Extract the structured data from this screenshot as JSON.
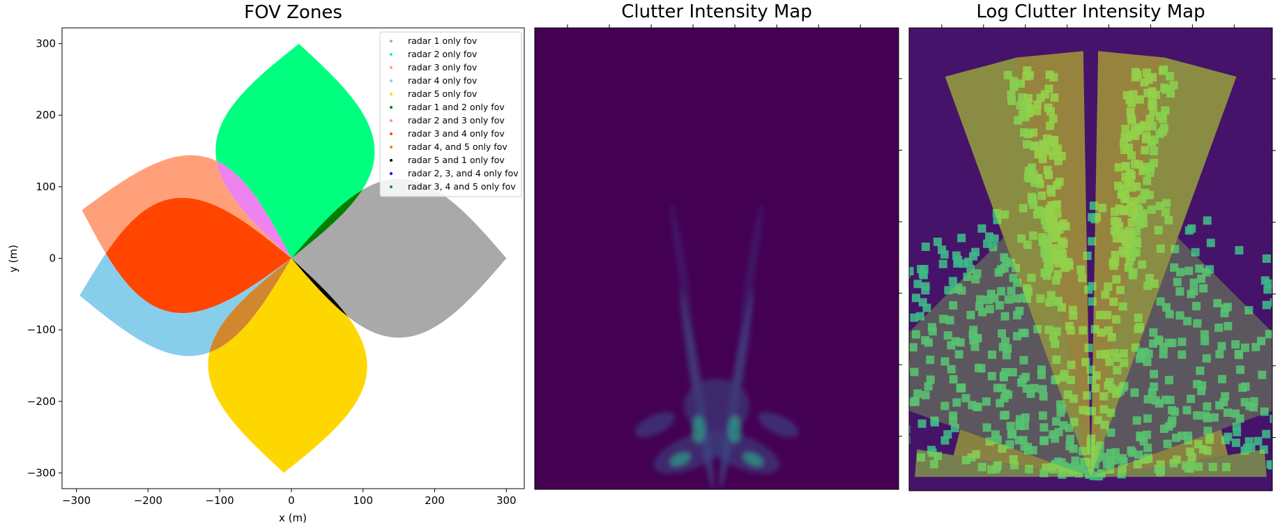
{
  "chart_data": [
    {
      "type": "scatter",
      "title": "FOV Zones",
      "xlabel": "x (m)",
      "ylabel": "y (m)",
      "xlim": [
        -320,
        325
      ],
      "ylim": [
        -322,
        322
      ],
      "xticks": [
        -300,
        -200,
        -100,
        0,
        100,
        200,
        300
      ],
      "yticks": [
        -300,
        -200,
        -100,
        0,
        100,
        200,
        300
      ],
      "xtick_labels": [
        "−300",
        "−200",
        "−100",
        "0",
        "100",
        "200",
        "300"
      ],
      "ytick_labels": [
        "−300",
        "−200",
        "−100",
        "0",
        "100",
        "200",
        "300"
      ],
      "legend_position": "upper right",
      "radars": [
        {
          "id": 1,
          "x": 0,
          "y": 0,
          "boresight_deg": 0,
          "range": 300
        },
        {
          "id": 2,
          "x": 0,
          "y": 0,
          "boresight_deg": 88,
          "range": 300
        },
        {
          "id": 3,
          "x": 0,
          "y": 0,
          "boresight_deg": 167,
          "range": 300
        },
        {
          "id": 4,
          "x": 0,
          "y": 0,
          "boresight_deg": 190,
          "range": 300
        },
        {
          "id": 5,
          "x": 0,
          "y": 0,
          "boresight_deg": 268,
          "range": 300
        }
      ],
      "series": [
        {
          "name": "radar 1 only fov",
          "color": "#a9a9a9",
          "radars": [
            1
          ]
        },
        {
          "name": "radar 2 only fov",
          "color": "#00ff7f",
          "radars": [
            2
          ]
        },
        {
          "name": "radar 3 only fov",
          "color": "#ffa07a",
          "radars": [
            3
          ]
        },
        {
          "name": "radar 4 only fov",
          "color": "#87ceeb",
          "radars": [
            4
          ]
        },
        {
          "name": "radar 5 only fov",
          "color": "#ffd700",
          "radars": [
            5
          ]
        },
        {
          "name": "radar 1 and 2 only fov",
          "color": "#008000",
          "radars": [
            1,
            2
          ]
        },
        {
          "name": "radar 2 and 3 only fov",
          "color": "#ee82ee",
          "radars": [
            2,
            3
          ]
        },
        {
          "name": "radar 3 and 4 only fov",
          "color": "#ff4500",
          "radars": [
            3,
            4
          ]
        },
        {
          "name": "radar 4, and 5 only fov",
          "color": "#d2872f",
          "radars": [
            4,
            5
          ]
        },
        {
          "name": "radar 5 and 1 only fov",
          "color": "#000000",
          "radars": [
            5,
            1
          ]
        },
        {
          "name": "radar 2, 3, and 4 only fov",
          "color": "#0000ff",
          "radars": [
            2,
            3,
            4
          ]
        },
        {
          "name": "radar 3, 4 and 5 only fov",
          "color": "#008080",
          "radars": [
            3,
            4,
            5
          ]
        }
      ]
    },
    {
      "type": "heatmap",
      "title": "Clutter Intensity Map",
      "colormap": "viridis",
      "background_color": "#440154",
      "blobs": [
        {
          "x": 0.43,
          "y": 0.92,
          "sx": 0.11,
          "sy": 0.035,
          "angle": -22,
          "w": 0.16
        },
        {
          "x": 0.57,
          "y": 0.92,
          "sx": 0.11,
          "sy": 0.035,
          "angle": 22,
          "w": 0.16
        },
        {
          "x": 0.33,
          "y": 0.86,
          "sx": 0.06,
          "sy": 0.02,
          "angle": -25,
          "w": 0.18
        },
        {
          "x": 0.67,
          "y": 0.86,
          "sx": 0.06,
          "sy": 0.02,
          "angle": 25,
          "w": 0.18
        },
        {
          "x": 0.446,
          "y": 0.78,
          "sx": 0.014,
          "sy": 0.22,
          "angle": -9,
          "w": 0.22
        },
        {
          "x": 0.554,
          "y": 0.78,
          "sx": 0.014,
          "sy": 0.22,
          "angle": 9,
          "w": 0.22
        },
        {
          "x": 0.5,
          "y": 0.82,
          "sx": 0.09,
          "sy": 0.06,
          "angle": 0,
          "w": 0.16
        },
        {
          "x": 0.404,
          "y": 0.52,
          "sx": 0.012,
          "sy": 0.14,
          "angle": -9,
          "w": 0.09
        },
        {
          "x": 0.596,
          "y": 0.52,
          "sx": 0.012,
          "sy": 0.14,
          "angle": 9,
          "w": 0.09
        },
        {
          "x": 0.45,
          "y": 0.87,
          "sx": 0.018,
          "sy": 0.03,
          "angle": 0,
          "w": 0.55
        },
        {
          "x": 0.55,
          "y": 0.87,
          "sx": 0.018,
          "sy": 0.03,
          "angle": 0,
          "w": 0.55
        },
        {
          "x": 0.4,
          "y": 0.935,
          "sx": 0.03,
          "sy": 0.013,
          "angle": -25,
          "w": 0.55
        },
        {
          "x": 0.6,
          "y": 0.935,
          "sx": 0.03,
          "sy": 0.013,
          "angle": 25,
          "w": 0.55
        },
        {
          "x": 0.455,
          "y": 0.865,
          "sx": 0.007,
          "sy": 0.013,
          "angle": 0,
          "w": 0.45
        },
        {
          "x": 0.545,
          "y": 0.865,
          "sx": 0.007,
          "sy": 0.013,
          "angle": 0,
          "w": 0.45
        }
      ]
    },
    {
      "type": "heatmap",
      "title": "Log Clutter Intensity Map",
      "colormap": "viridis",
      "background_color": "#46136a",
      "fan_apex": [
        0.5,
        0.97
      ],
      "fan_angles_deg": [
        0,
        9,
        20,
        70,
        80,
        89,
        91,
        100,
        110,
        160,
        171,
        180
      ]
    }
  ]
}
